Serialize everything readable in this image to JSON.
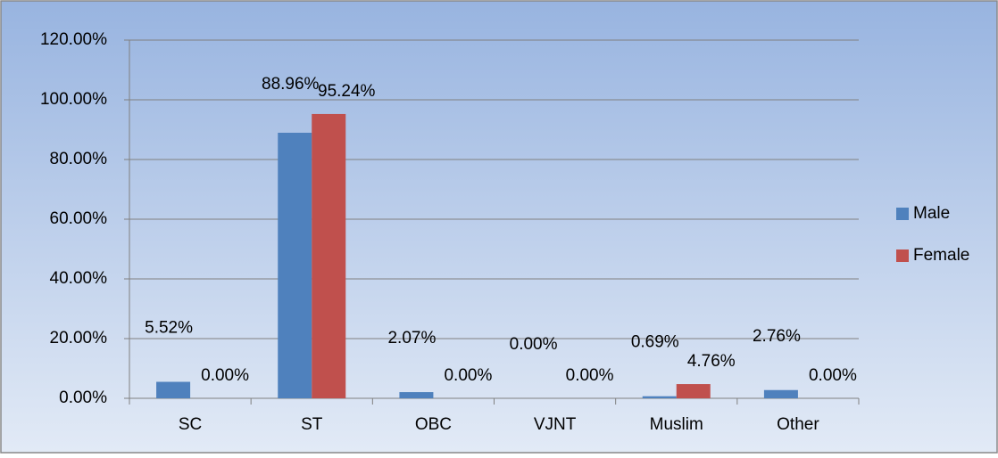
{
  "chart_data": {
    "type": "bar",
    "categories": [
      "SC",
      "ST",
      "OBC",
      "VJNT",
      "Muslim",
      "Other"
    ],
    "series": [
      {
        "name": "Male",
        "color": "#4f81bd",
        "values": [
          5.52,
          88.96,
          2.07,
          0,
          0.69,
          2.76
        ],
        "value_labels": [
          "5.52%",
          "88.96%",
          "2.07%",
          "0.00%",
          "0.69%",
          "2.76%"
        ]
      },
      {
        "name": "Female",
        "color": "#c0504d",
        "values": [
          0,
          95.24,
          0,
          0,
          4.76,
          0
        ],
        "value_labels": [
          "0.00%",
          "95.24%",
          "0.00%",
          "0.00%",
          "4.76%",
          "0.00%"
        ]
      }
    ],
    "ylim": [
      0,
      120
    ],
    "yticks": [
      {
        "value": 0,
        "label": "0.00%"
      },
      {
        "value": 20,
        "label": "20.00%"
      },
      {
        "value": 40,
        "label": "40.00%"
      },
      {
        "value": 60,
        "label": "60.00%"
      },
      {
        "value": 80,
        "label": "80.00%"
      },
      {
        "value": 100,
        "label": "100.00%"
      },
      {
        "value": 120,
        "label": "120.00%"
      }
    ],
    "grid": true,
    "legend": "right"
  }
}
